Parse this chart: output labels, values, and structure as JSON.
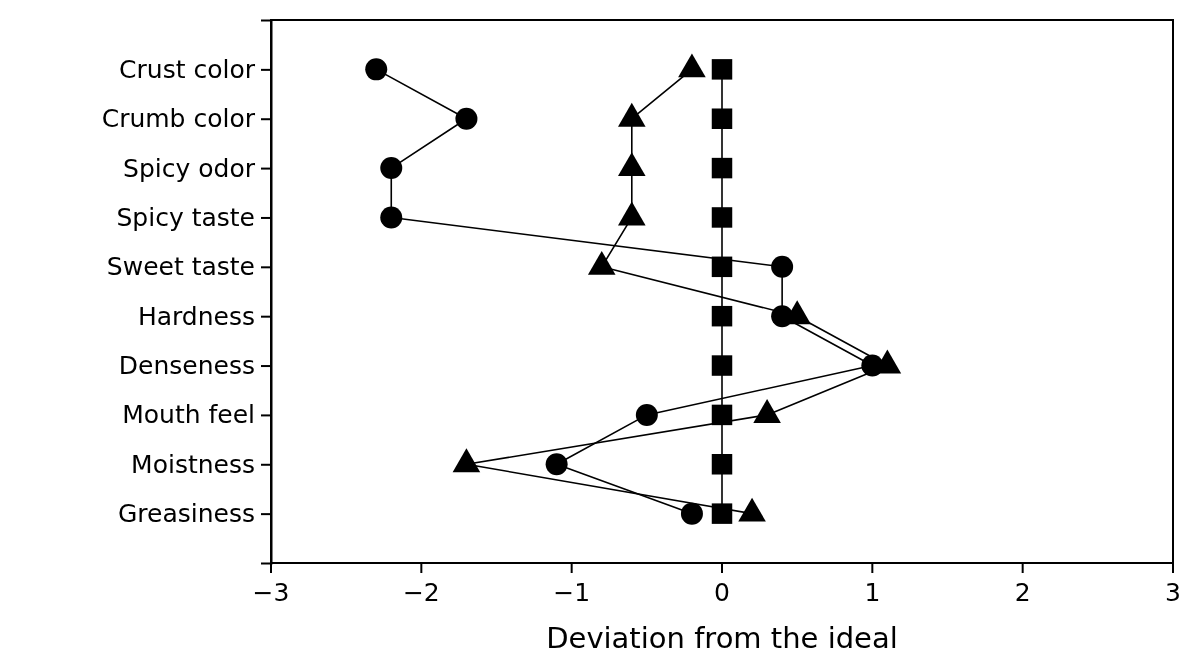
{
  "chart_data": {
    "type": "line",
    "orientation": "horizontal",
    "xlabel": "Deviation from the ideal",
    "categories": [
      "Crust color",
      "Crumb color",
      "Spicy odor",
      "Spicy taste",
      "Sweet taste",
      "Hardness",
      "Denseness",
      "Mouth feel",
      "Moistness",
      "Greasiness"
    ],
    "series": [
      {
        "color": "#000000",
        "marker": "circle",
        "values": [
          -2.3,
          -1.7,
          -2.2,
          -2.2,
          0.4,
          0.4,
          1.0,
          -0.5,
          -1.1,
          -0.2
        ]
      },
      {
        "color": "#000000",
        "marker": "triangle",
        "values": [
          -0.2,
          -0.6,
          -0.6,
          -0.6,
          -0.8,
          0.5,
          1.1,
          0.3,
          -1.7,
          0.2
        ]
      },
      {
        "color": "#000000",
        "marker": "square",
        "values": [
          0,
          0,
          0,
          0,
          0,
          0,
          0,
          0,
          0,
          0
        ]
      }
    ],
    "xlim": [
      -3,
      3
    ],
    "xticks": [
      -3,
      -2,
      -1,
      0,
      1,
      2,
      3
    ]
  }
}
